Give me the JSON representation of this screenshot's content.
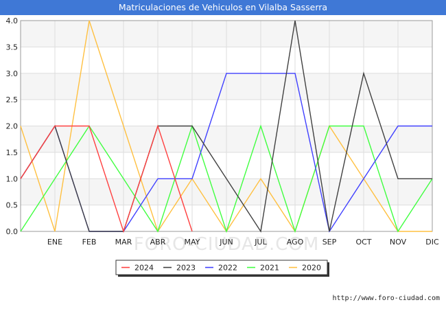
{
  "title": "Matriculaciones de Vehiculos en Vilalba Sasserra",
  "watermark": "FORO-CIUDAD.COM",
  "footer_url": "http://www.foro-ciudad.com",
  "chart_data": {
    "type": "line",
    "title": "Matriculaciones de Vehiculos en Vilalba Sasserra",
    "xlabel": "",
    "ylabel": "",
    "categories": [
      "",
      "ENE",
      "FEB",
      "MAR",
      "ABR",
      "MAY",
      "JUN",
      "JUL",
      "AGO",
      "SEP",
      "OCT",
      "NOV",
      "DIC"
    ],
    "ylim": [
      0,
      4
    ],
    "yticks": [
      "0.0",
      "0.5",
      "1.0",
      "1.5",
      "2.0",
      "2.5",
      "3.0",
      "3.5",
      "4.0"
    ],
    "grid": true,
    "legend_position": "bottom",
    "series": [
      {
        "name": "2024",
        "color": "#ff4040",
        "values": [
          1,
          2,
          2,
          0,
          2,
          0,
          null,
          null,
          null,
          null,
          null,
          null,
          null
        ]
      },
      {
        "name": "2023",
        "color": "#404040",
        "values": [
          1,
          2,
          0,
          0,
          2,
          2,
          1,
          0,
          4,
          0,
          3,
          1,
          1
        ]
      },
      {
        "name": "2022",
        "color": "#4040ff",
        "values": [
          1,
          2,
          0,
          0,
          1,
          1,
          3,
          3,
          3,
          0,
          1,
          2,
          2
        ]
      },
      {
        "name": "2021",
        "color": "#40ff40",
        "values": [
          0,
          1,
          2,
          1,
          0,
          2,
          0,
          2,
          0,
          2,
          2,
          0,
          1
        ]
      },
      {
        "name": "2020",
        "color": "#ffc040",
        "values": [
          2,
          0,
          4,
          2,
          0,
          1,
          0,
          1,
          0,
          2,
          1,
          0,
          0
        ]
      }
    ]
  }
}
